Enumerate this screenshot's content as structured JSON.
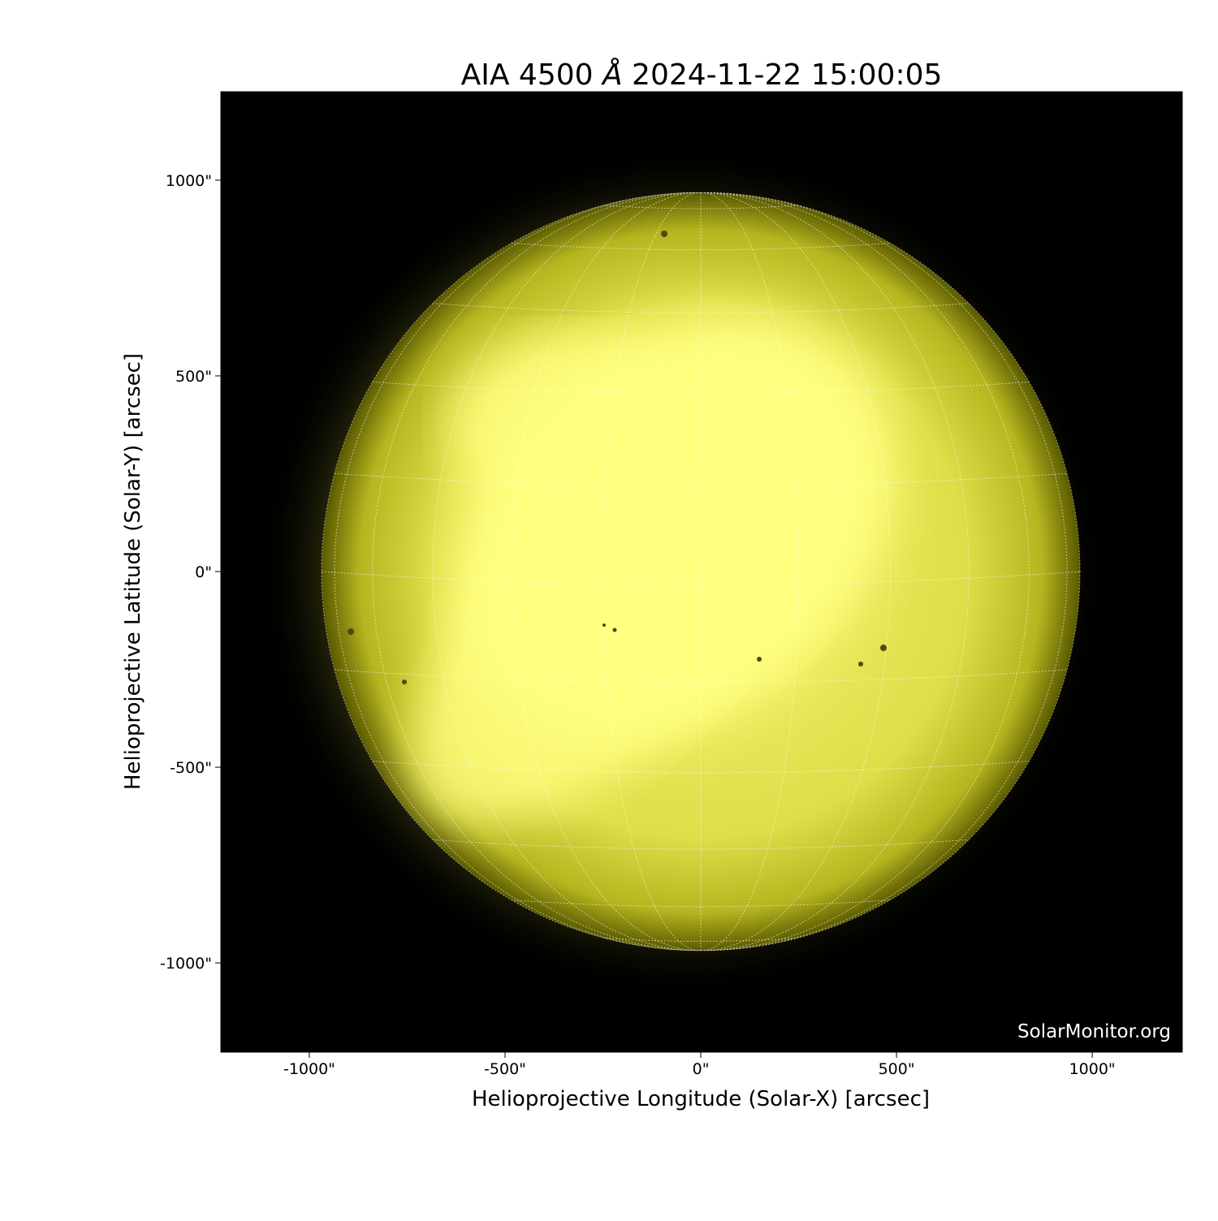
{
  "chart_data": {
    "type": "image",
    "title": "AIA 4500 Å 2024-11-22 15:00:05",
    "title_parts": {
      "prefix": "AIA 4500 ",
      "unit": "Å",
      "suffix": " 2024-11-22 15:00:05"
    },
    "xlabel": "Helioprojective Longitude (Solar-X) [arcsec]",
    "ylabel": "Helioprojective Latitude (Solar-Y) [arcsec]",
    "xlim": [
      -1226,
      1230
    ],
    "ylim": [
      -1228,
      1226
    ],
    "xticks": [
      -1000,
      -500,
      0,
      500,
      1000
    ],
    "xtick_labels": [
      "-1000\"",
      "-500\"",
      "0\"",
      "500\"",
      "1000\""
    ],
    "yticks": [
      1000,
      500,
      0,
      -500,
      -1000
    ],
    "ytick_labels": [
      "1000\"",
      "500\"",
      "0\"",
      "-500\"",
      "-1000\""
    ],
    "solar_radius_arcsec": 969,
    "grid_spacing_deg": 15,
    "grid": true,
    "colormap": "yellow (sdoaia4500)",
    "background_color": "#000000",
    "disk_color_bright": "#ffff80",
    "disk_color_limb": "#6b6b00",
    "watermark": "SolarMonitor.org"
  }
}
